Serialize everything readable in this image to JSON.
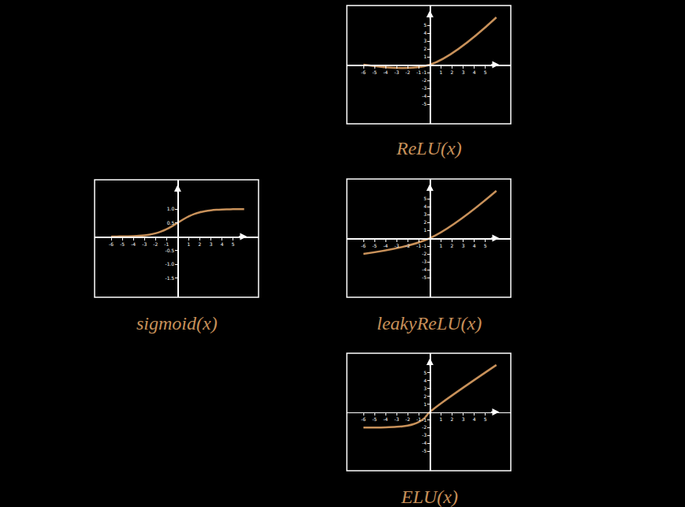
{
  "chart_data": [
    {
      "type": "line",
      "title": "ReLU(x)",
      "color": "#c8915a",
      "grid": false,
      "xlim": [
        -7.5,
        7.3
      ],
      "ylim": [
        -7.5,
        7.5
      ],
      "xticks": [
        -6,
        -5,
        -4,
        -3,
        -2,
        -1,
        1,
        2,
        3,
        4,
        5
      ],
      "yticks": [
        -5,
        -4,
        -3,
        -2,
        -1,
        1,
        2,
        3,
        4,
        5
      ],
      "x": [
        -6,
        0,
        6
      ],
      "values": [
        0,
        0,
        6
      ]
    },
    {
      "type": "line",
      "title": "sigmoid(x)",
      "color": "#c8915a",
      "grid": false,
      "xlim": [
        -7.5,
        7.3
      ],
      "ylim": [
        -2.2,
        2.06
      ],
      "xticks": [
        -6,
        -5,
        -4,
        -3,
        -2,
        -1,
        1,
        2,
        3,
        4,
        5
      ],
      "yticks": [
        {
          "value": -1.5,
          "label": "-1.5"
        },
        {
          "value": -1,
          "label": "-1.0"
        },
        {
          "value": -0.5,
          "label": "-0.5"
        },
        {
          "value": 0.5,
          "label": "0.5"
        },
        {
          "value": 1,
          "label": "1.0"
        }
      ],
      "x": [
        -6,
        -5.5,
        -5,
        -4.5,
        -4,
        -3.5,
        -3,
        -2.5,
        -2,
        -1.5,
        -1,
        -0.5,
        0,
        0.5,
        1,
        1.5,
        2,
        2.5,
        3,
        3.5,
        4,
        4.5,
        5,
        5.5,
        6
      ],
      "values": [
        0.0025,
        0.0041,
        0.0067,
        0.011,
        0.018,
        0.0293,
        0.0474,
        0.0759,
        0.1192,
        0.1824,
        0.2689,
        0.3775,
        0.5,
        0.6225,
        0.7311,
        0.8176,
        0.8808,
        0.9241,
        0.9526,
        0.9707,
        0.982,
        0.989,
        0.9933,
        0.9959,
        0.9975
      ]
    },
    {
      "type": "line",
      "title": "leakyReLU(x)",
      "color": "#c8915a",
      "grid": false,
      "xlim": [
        -7.5,
        7.3
      ],
      "ylim": [
        -7.5,
        7.5
      ],
      "xticks": [
        -6,
        -5,
        -4,
        -3,
        -2,
        -1,
        1,
        2,
        3,
        4,
        5
      ],
      "yticks": [
        -5,
        -4,
        -3,
        -2,
        -1,
        1,
        2,
        3,
        4,
        5
      ],
      "x": [
        -6,
        0,
        6
      ],
      "values": [
        -2,
        0,
        6
      ]
    },
    {
      "type": "line",
      "title": "ELU(x)",
      "color": "#c8915a",
      "grid": false,
      "xlim": [
        -7.5,
        7.3
      ],
      "ylim": [
        -7.5,
        7.5
      ],
      "xticks": [
        -6,
        -5,
        -4,
        -3,
        -2,
        -1,
        1,
        2,
        3,
        4,
        5
      ],
      "yticks": [
        -5,
        -4,
        -3,
        -2,
        -1,
        1,
        2,
        3,
        4,
        5
      ],
      "x": [
        -6,
        -5,
        -4,
        -3,
        -2.5,
        -2,
        -1.5,
        -1,
        -0.5,
        0,
        6
      ],
      "values": [
        -1.995,
        -1.987,
        -1.963,
        -1.9,
        -1.836,
        -1.729,
        -1.554,
        -1.264,
        -0.787,
        0,
        6
      ]
    }
  ]
}
